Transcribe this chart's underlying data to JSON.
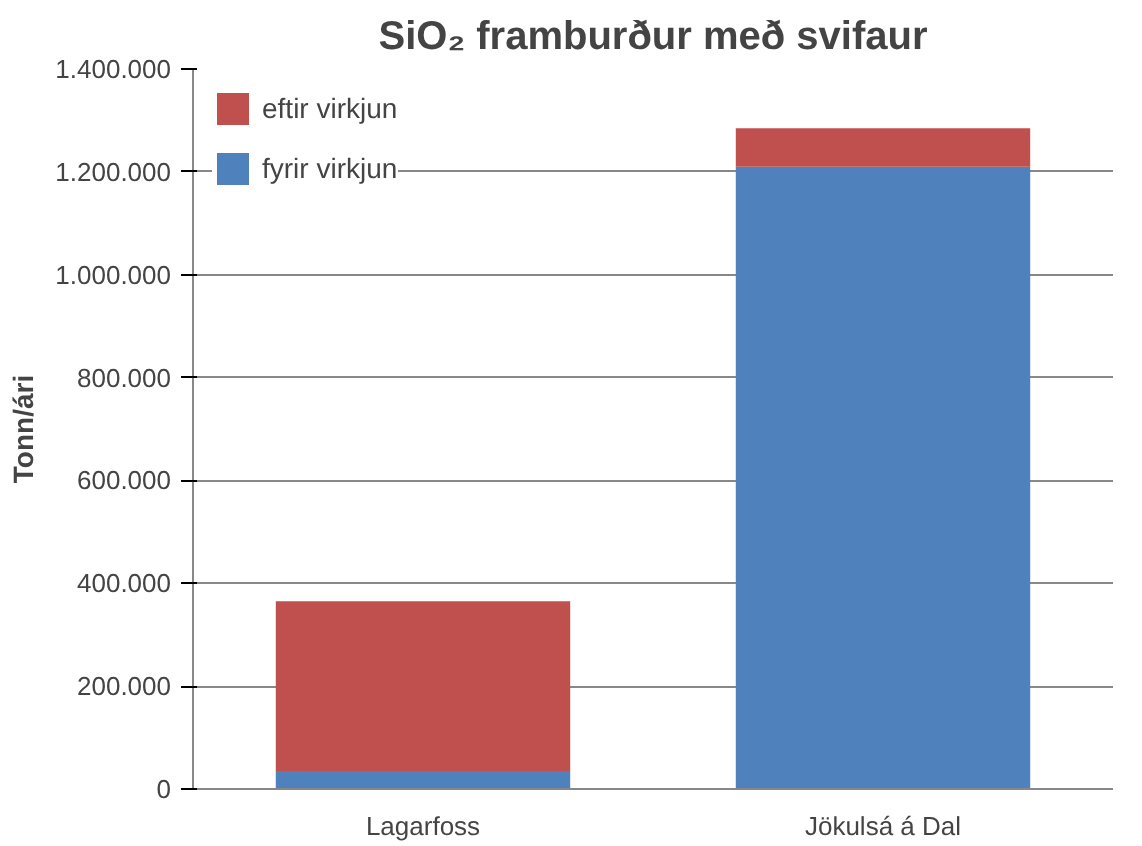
{
  "chart_data": {
    "type": "bar",
    "title": "SiO₂ framburður með svifaur",
    "ylabel": "Tonn/ári",
    "categories": [
      "Lagarfoss",
      "Jökulsá á Dal"
    ],
    "stacked": true,
    "series": [
      {
        "name": "fyrir virkjun",
        "color": "#4f81bd",
        "values": [
          35000,
          1210000
        ]
      },
      {
        "name": "eftir virkjun",
        "color": "#c0504d",
        "values": [
          330000,
          75000
        ]
      }
    ],
    "ylim": [
      0,
      1400000
    ],
    "yticks": [
      {
        "value": 0,
        "label": "0"
      },
      {
        "value": 200000,
        "label": "200.000"
      },
      {
        "value": 400000,
        "label": "400.000"
      },
      {
        "value": 600000,
        "label": "600.000"
      },
      {
        "value": 800000,
        "label": "800.000"
      },
      {
        "value": 1000000,
        "label": "1.000.000"
      },
      {
        "value": 1200000,
        "label": "1.200.000"
      },
      {
        "value": 1400000,
        "label": "1.400.000"
      }
    ],
    "grid": "y",
    "legend": "top left"
  }
}
